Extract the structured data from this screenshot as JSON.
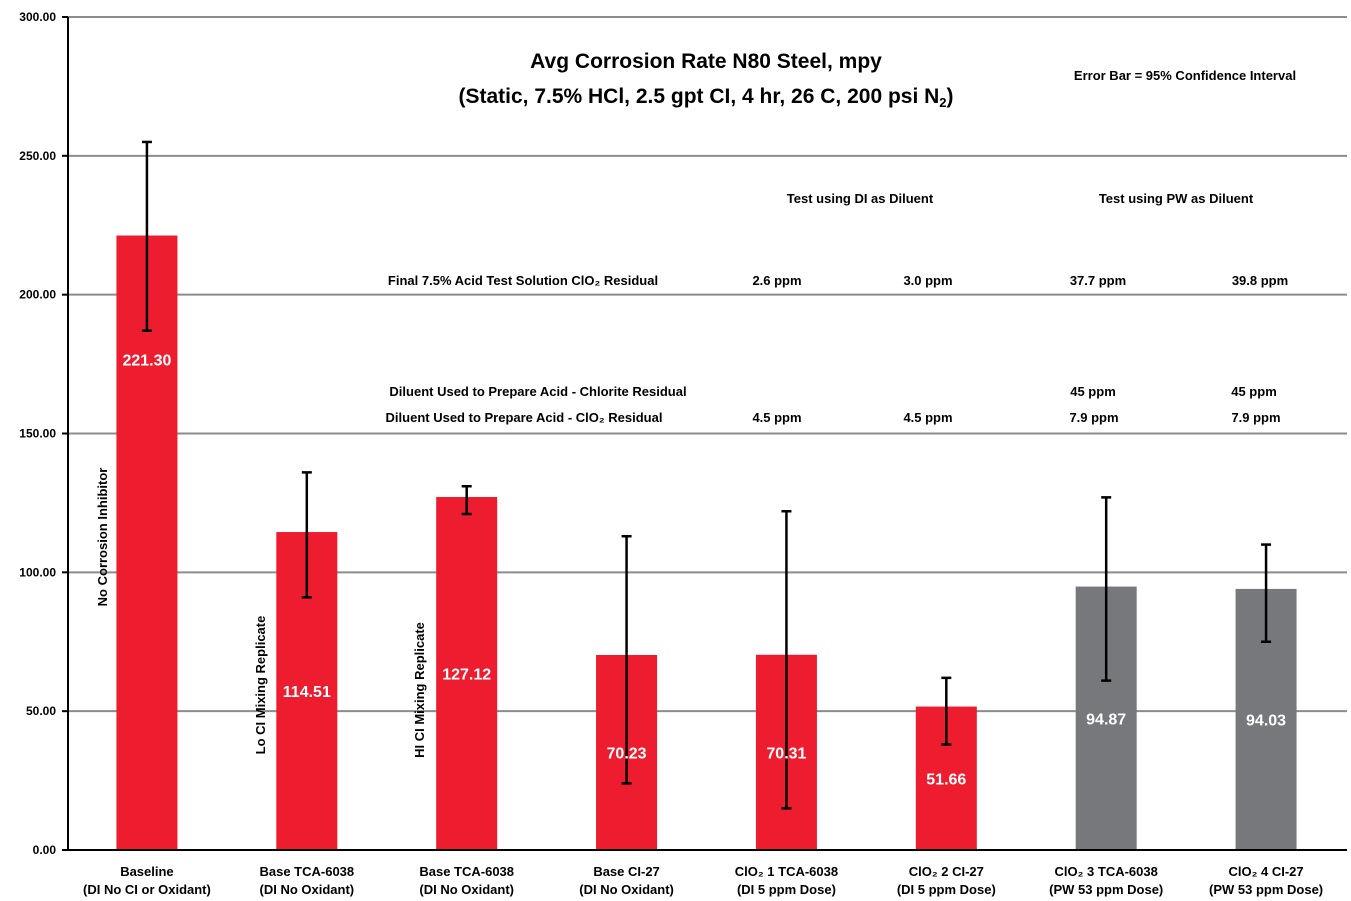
{
  "chart_data": {
    "type": "bar",
    "title_line1": "Avg Corrosion Rate N80 Steel, mpy",
    "title_line2_main": "(Static, 7.5% HCl, 2.5 gpt CI, 4 hr, 26 C, 200 psi N",
    "title_line2_sub": "2",
    "title_line2_end": ")",
    "error_note": "Error Bar = 95% Confidence Interval",
    "ylim": [
      0,
      300
    ],
    "yticks": [
      "0.00",
      "50.00",
      "100.00",
      "150.00",
      "200.00",
      "250.00",
      "300.00"
    ],
    "ytick_values": [
      0,
      50,
      100,
      150,
      200,
      250,
      300
    ],
    "grid": true,
    "colors": {
      "red": "#ed1c2e",
      "gray": "#77787b",
      "gridline": "#8c8c8c"
    },
    "categories": [
      {
        "line1": "Baseline",
        "line2": "(DI No CI or Oxidant)"
      },
      {
        "line1": "Base TCA-6038",
        "line2": "(DI No Oxidant)"
      },
      {
        "line1": "Base TCA-6038",
        "line2": "(DI No Oxidant)"
      },
      {
        "line1": "Base CI-27",
        "line2": "(DI No Oxidant)"
      },
      {
        "line1": "ClO₂ 1 TCA-6038",
        "line2": "(DI 5 ppm Dose)"
      },
      {
        "line1": "ClO₂ 2 CI-27",
        "line2": "(DI 5 ppm Dose)"
      },
      {
        "line1": "ClO₂ 3 TCA-6038",
        "line2": "(PW 53 ppm Dose)"
      },
      {
        "line1": "ClO₂ 4 CI-27",
        "line2": "(PW 53 ppm Dose)"
      }
    ],
    "values": [
      221.3,
      114.51,
      127.12,
      70.23,
      70.31,
      51.66,
      94.87,
      94.03
    ],
    "value_labels": [
      "221.30",
      "114.51",
      "127.12",
      "70.23",
      "70.31",
      "51.66",
      "94.87",
      "94.03"
    ],
    "bar_colors": [
      "red",
      "red",
      "red",
      "red",
      "red",
      "red",
      "gray",
      "gray"
    ],
    "error_low": [
      187,
      91,
      121,
      24,
      15,
      38,
      61,
      75
    ],
    "error_high": [
      255,
      136,
      131,
      113,
      122,
      62,
      127,
      110
    ],
    "vertical_labels": [
      "No Corrosion Inhibitor",
      "Lo CI Mixing Replicate",
      "HI CI Mixing Replicate"
    ],
    "annotations": {
      "header_di": "Test using DI as Diluent",
      "header_pw": "Test using PW as Diluent",
      "row_final_label": "Final 7.5% Acid Test Solution ClO₂ Residual",
      "row_final_values": [
        "2.6 ppm",
        "3.0 ppm",
        "37.7 ppm",
        "39.8 ppm"
      ],
      "row_chlorite_label": "Diluent Used to Prepare Acid - Chlorite Residual",
      "row_chlorite_values": [
        "45 ppm",
        "45 ppm"
      ],
      "row_clo2_label": "Diluent Used to Prepare Acid - ClO₂ Residual",
      "row_clo2_values": [
        "4.5 ppm",
        "4.5 ppm",
        "7.9 ppm",
        "7.9 ppm"
      ]
    }
  }
}
